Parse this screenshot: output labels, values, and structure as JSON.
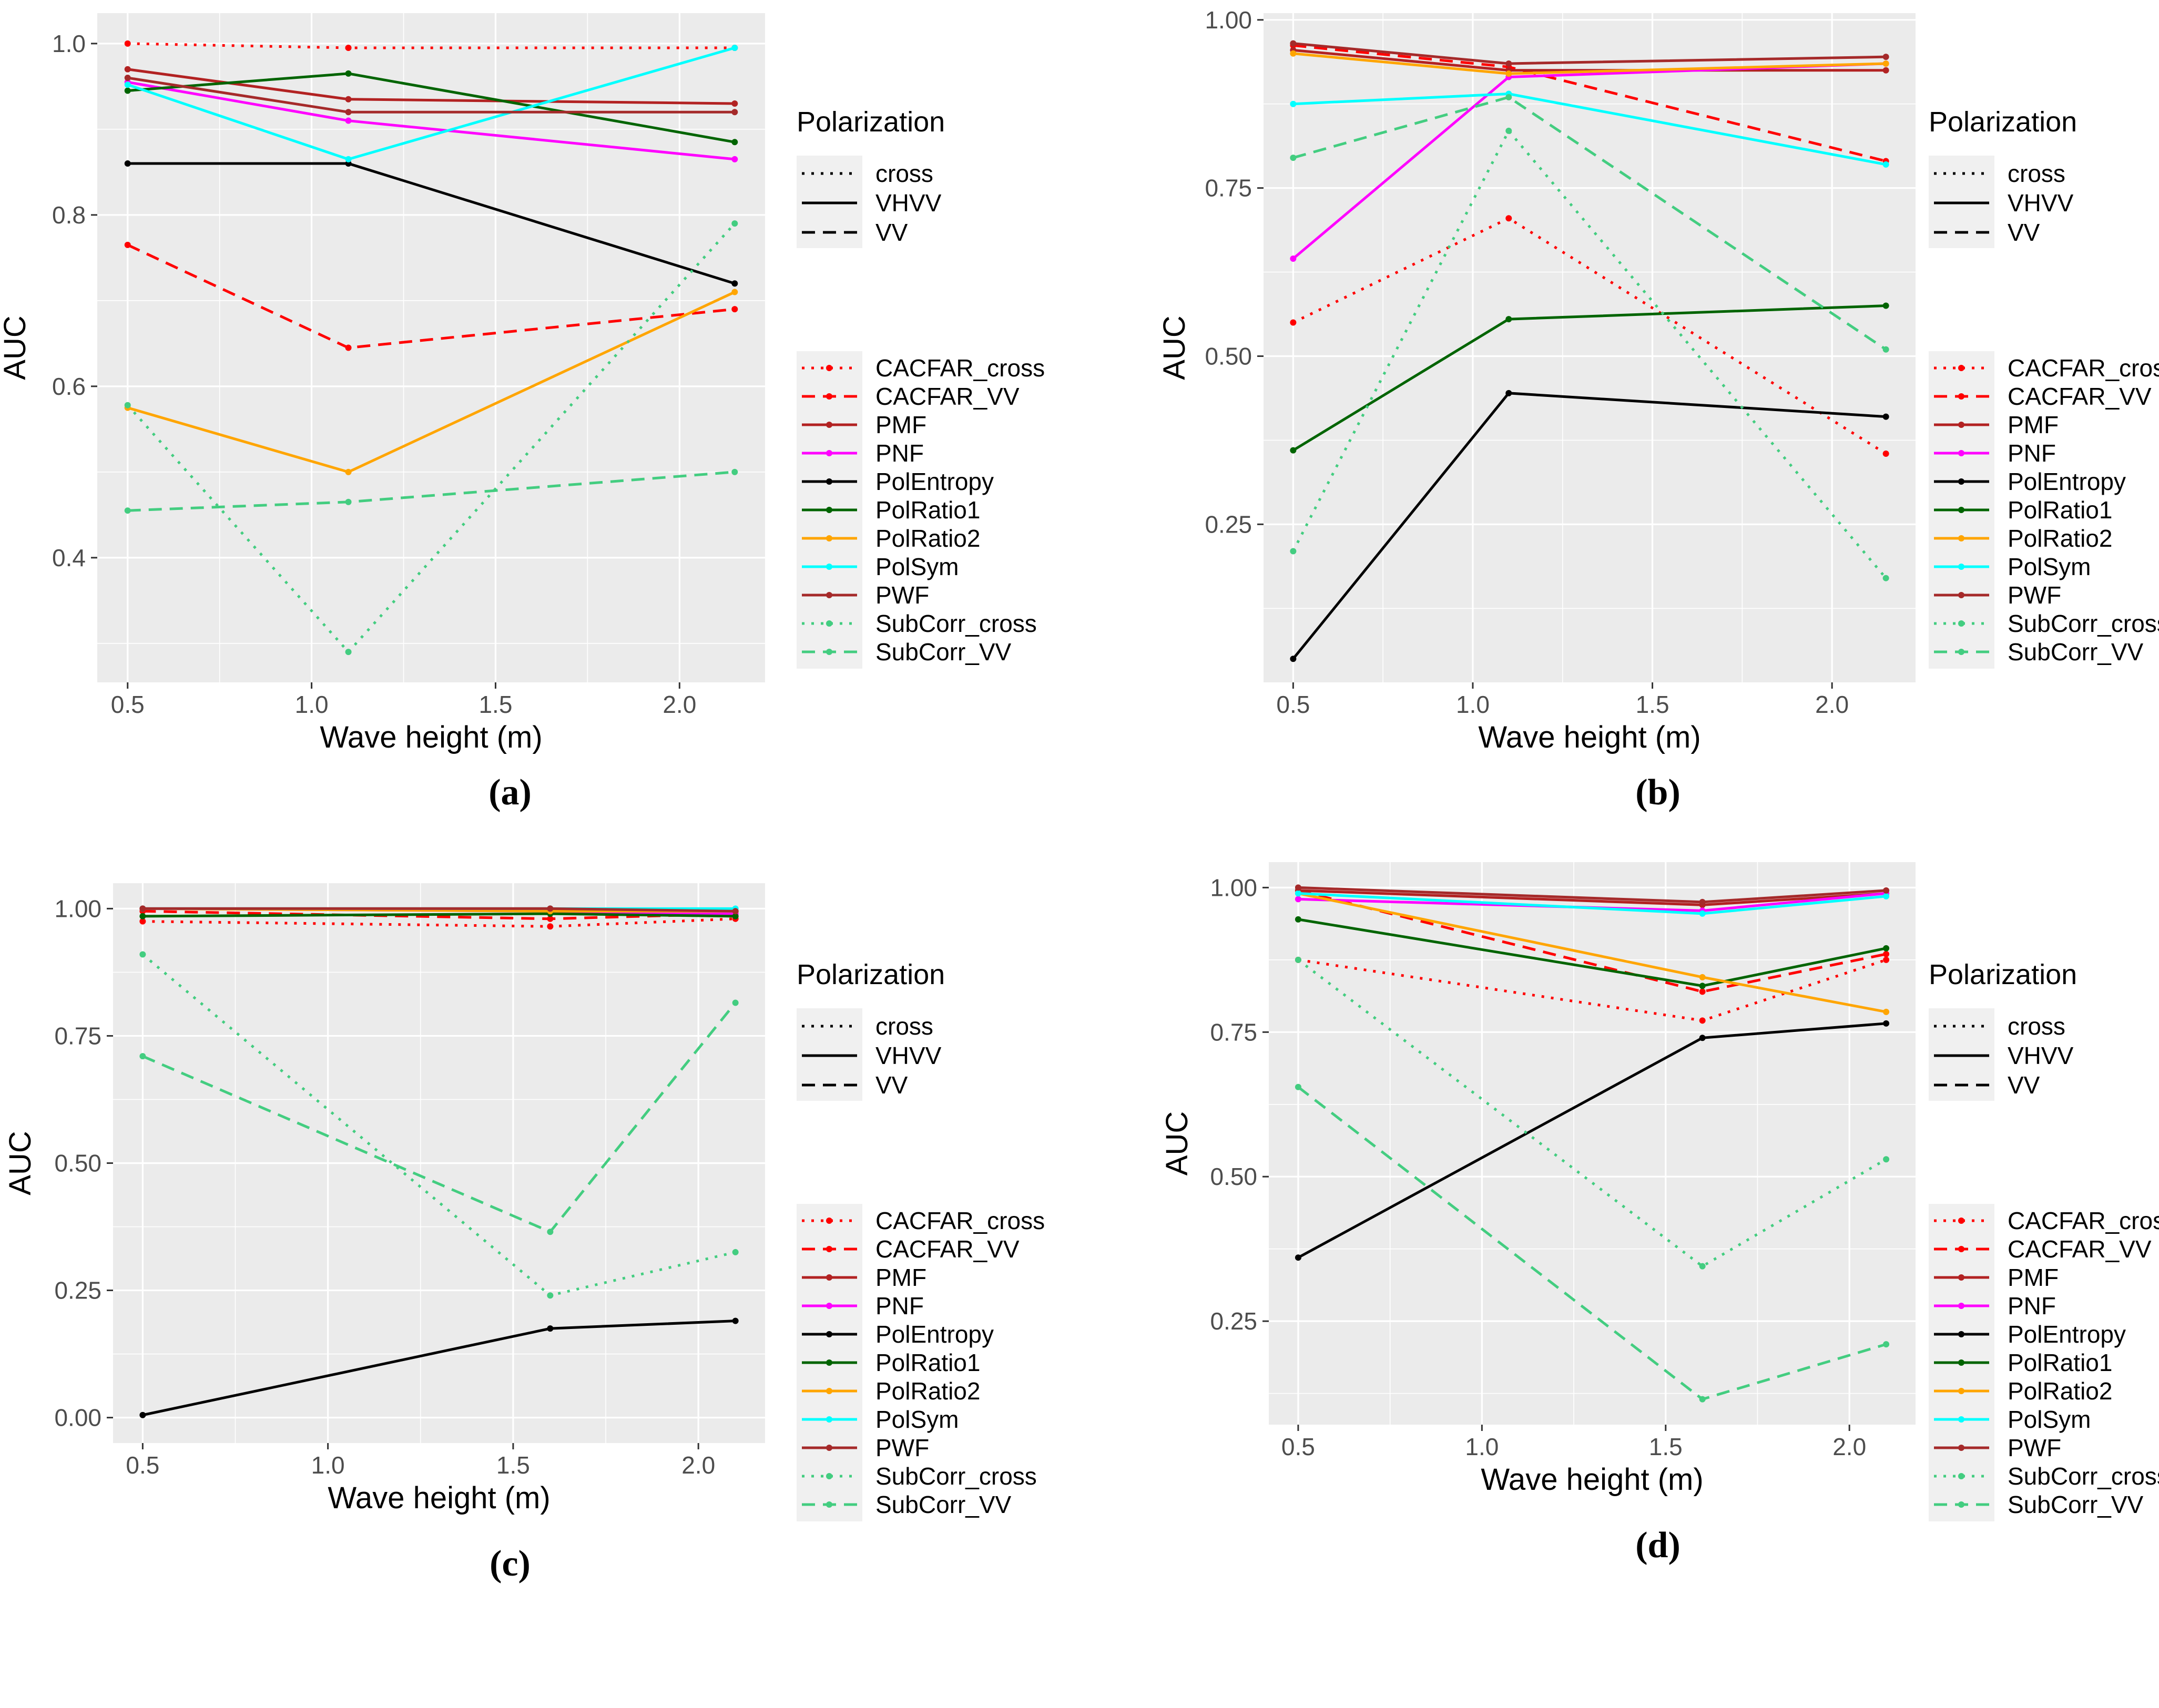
{
  "figure_title": "",
  "axis": {
    "xlabel": "Wave height (m)",
    "ylabel": "AUC"
  },
  "legend": {
    "polarization": {
      "title": "Polarization",
      "items": [
        {
          "label": "cross",
          "dash": "dotted"
        },
        {
          "label": "VHVV",
          "dash": "solid"
        },
        {
          "label": "VV",
          "dash": "dashed"
        }
      ]
    },
    "series_styles": [
      {
        "name": "CACFAR_cross",
        "color": "#FF0000",
        "dash": "dotted"
      },
      {
        "name": "CACFAR_VV",
        "color": "#FF0000",
        "dash": "dashed"
      },
      {
        "name": "PMF",
        "color": "#B22222",
        "dash": "solid"
      },
      {
        "name": "PNF",
        "color": "#FF00FF",
        "dash": "solid"
      },
      {
        "name": "PolEntropy",
        "color": "#000000",
        "dash": "solid"
      },
      {
        "name": "PolRatio1",
        "color": "#006400",
        "dash": "solid"
      },
      {
        "name": "PolRatio2",
        "color": "#FFA500",
        "dash": "solid"
      },
      {
        "name": "PolSym",
        "color": "#00FFFF",
        "dash": "solid"
      },
      {
        "name": "PWF",
        "color": "#A52A2A",
        "dash": "solid"
      },
      {
        "name": "SubCorr_cross",
        "color": "#43CD80",
        "dash": "dotted"
      },
      {
        "name": "SubCorr_VV",
        "color": "#43CD80",
        "dash": "dashed"
      }
    ],
    "colors": {
      "plot_background": "#EBEBEB",
      "gridline": "#FFFFFF",
      "tick_label": "#4D4D4D",
      "legend_key_bg": "#F0F0F0"
    }
  },
  "chart_data": [
    {
      "id": "a",
      "type": "line",
      "caption": "(a)",
      "xlabel": "Wave height (m)",
      "ylabel": "AUC",
      "x": [
        0.5,
        1.1,
        2.15
      ],
      "x_domain": [
        0.4175,
        2.2325
      ],
      "x_ticks": [
        0.5,
        1.0,
        1.5,
        2.0
      ],
      "x_tick_labels": [
        "0.5",
        "1.0",
        "1.5",
        "2.0"
      ],
      "x_minor": [
        0.75,
        1.25,
        1.75
      ],
      "y_domain": [
        0.2545,
        1.0355
      ],
      "y_ticks": [
        0.4,
        0.6,
        0.8,
        1.0
      ],
      "y_tick_labels": [
        "0.4",
        "0.6",
        "0.8",
        "1.0"
      ],
      "y_minor": [
        0.3,
        0.5,
        0.7,
        0.9
      ],
      "series": [
        {
          "name": "CACFAR_cross",
          "values": [
            1.0,
            0.995,
            0.995
          ]
        },
        {
          "name": "CACFAR_VV",
          "values": [
            0.765,
            0.645,
            0.69
          ]
        },
        {
          "name": "PMF",
          "values": [
            0.97,
            0.935,
            0.93
          ]
        },
        {
          "name": "PNF",
          "values": [
            0.955,
            0.91,
            0.865
          ]
        },
        {
          "name": "PolEntropy",
          "values": [
            0.86,
            0.86,
            0.72
          ]
        },
        {
          "name": "PolRatio1",
          "values": [
            0.945,
            0.965,
            0.885
          ]
        },
        {
          "name": "PolRatio2",
          "values": [
            0.575,
            0.5,
            0.71
          ]
        },
        {
          "name": "PolSym",
          "values": [
            0.952,
            0.865,
            0.995
          ]
        },
        {
          "name": "PWF",
          "values": [
            0.96,
            0.92,
            0.92
          ]
        },
        {
          "name": "SubCorr_cross",
          "values": [
            0.578,
            0.29,
            0.79
          ]
        },
        {
          "name": "SubCorr_VV",
          "values": [
            0.455,
            0.465,
            0.5
          ]
        }
      ]
    },
    {
      "id": "b",
      "type": "line",
      "caption": "(b)",
      "xlabel": "Wave height (m)",
      "ylabel": "AUC",
      "x": [
        0.5,
        1.1,
        2.15
      ],
      "x_domain": [
        0.4175,
        2.2325
      ],
      "x_ticks": [
        0.5,
        1.0,
        1.5,
        2.0
      ],
      "x_tick_labels": [
        "0.5",
        "1.0",
        "1.5",
        "2.0"
      ],
      "x_minor": [
        0.75,
        1.25,
        1.75
      ],
      "y_domain": [
        0.015,
        1.01
      ],
      "y_ticks": [
        0.25,
        0.5,
        0.75,
        1.0
      ],
      "y_tick_labels": [
        "0.25",
        "0.50",
        "0.75",
        "1.00"
      ],
      "y_minor": [
        0.125,
        0.375,
        0.625,
        0.875
      ],
      "series": [
        {
          "name": "CACFAR_cross",
          "values": [
            0.55,
            0.705,
            0.355
          ]
        },
        {
          "name": "CACFAR_VV",
          "values": [
            0.962,
            0.93,
            0.79
          ]
        },
        {
          "name": "PMF",
          "values": [
            0.955,
            0.925,
            0.925
          ]
        },
        {
          "name": "PNF",
          "values": [
            0.645,
            0.915,
            0.935
          ]
        },
        {
          "name": "PolEntropy",
          "values": [
            0.05,
            0.445,
            0.41
          ]
        },
        {
          "name": "PolRatio1",
          "values": [
            0.36,
            0.555,
            0.575
          ]
        },
        {
          "name": "PolRatio2",
          "values": [
            0.95,
            0.92,
            0.935
          ]
        },
        {
          "name": "PolSym",
          "values": [
            0.875,
            0.89,
            0.785
          ]
        },
        {
          "name": "PWF",
          "values": [
            0.965,
            0.935,
            0.945
          ]
        },
        {
          "name": "SubCorr_cross",
          "values": [
            0.21,
            0.835,
            0.17
          ]
        },
        {
          "name": "SubCorr_VV",
          "values": [
            0.795,
            0.885,
            0.51
          ]
        }
      ]
    },
    {
      "id": "c",
      "type": "line",
      "caption": "(c)",
      "xlabel": "Wave height (m)",
      "ylabel": "AUC",
      "x": [
        0.5,
        1.6,
        2.1
      ],
      "x_domain": [
        0.42,
        2.18
      ],
      "x_ticks": [
        0.5,
        1.0,
        1.5,
        2.0
      ],
      "x_tick_labels": [
        "0.5",
        "1.0",
        "1.5",
        "2.0"
      ],
      "x_minor": [
        0.75,
        1.25,
        1.75
      ],
      "y_domain": [
        -0.05,
        1.05
      ],
      "y_ticks": [
        0.0,
        0.25,
        0.5,
        0.75,
        1.0
      ],
      "y_tick_labels": [
        "0.00",
        "0.25",
        "0.50",
        "0.75",
        "1.00"
      ],
      "y_minor": [
        0.125,
        0.375,
        0.625,
        0.875
      ],
      "series": [
        {
          "name": "CACFAR_cross",
          "values": [
            0.975,
            0.965,
            0.98
          ]
        },
        {
          "name": "CACFAR_VV",
          "values": [
            0.995,
            0.98,
            0.99
          ]
        },
        {
          "name": "PMF",
          "values": [
            1.0,
            1.0,
            0.995
          ]
        },
        {
          "name": "PNF",
          "values": [
            1.0,
            0.995,
            0.99
          ]
        },
        {
          "name": "PolEntropy",
          "values": [
            0.005,
            0.175,
            0.19
          ]
        },
        {
          "name": "PolRatio1",
          "values": [
            0.985,
            0.99,
            0.985
          ]
        },
        {
          "name": "PolRatio2",
          "values": [
            1.0,
            0.995,
            0.995
          ]
        },
        {
          "name": "PolSym",
          "values": [
            1.0,
            1.0,
            1.0
          ]
        },
        {
          "name": "PWF",
          "values": [
            1.0,
            1.0,
            0.995
          ]
        },
        {
          "name": "SubCorr_cross",
          "values": [
            0.91,
            0.24,
            0.325
          ]
        },
        {
          "name": "SubCorr_VV",
          "values": [
            0.71,
            0.365,
            0.815
          ]
        }
      ]
    },
    {
      "id": "d",
      "type": "line",
      "caption": "(d)",
      "xlabel": "Wave height (m)",
      "ylabel": "AUC",
      "x": [
        0.5,
        1.6,
        2.1
      ],
      "x_domain": [
        0.42,
        2.18
      ],
      "x_ticks": [
        0.5,
        1.0,
        1.5,
        2.0
      ],
      "x_tick_labels": [
        "0.5",
        "1.0",
        "1.5",
        "2.0"
      ],
      "x_minor": [
        0.75,
        1.25,
        1.75
      ],
      "y_domain": [
        0.071,
        1.044
      ],
      "y_ticks": [
        0.25,
        0.5,
        0.75,
        1.0
      ],
      "y_tick_labels": [
        "0.25",
        "0.50",
        "0.75",
        "1.00"
      ],
      "y_minor": [
        0.125,
        0.375,
        0.625,
        0.875
      ],
      "series": [
        {
          "name": "CACFAR_cross",
          "values": [
            0.875,
            0.77,
            0.875
          ]
        },
        {
          "name": "CACFAR_VV",
          "values": [
            0.995,
            0.82,
            0.885
          ]
        },
        {
          "name": "PMF",
          "values": [
            0.995,
            0.97,
            0.99
          ]
        },
        {
          "name": "PNF",
          "values": [
            0.98,
            0.96,
            0.99
          ]
        },
        {
          "name": "PolEntropy",
          "values": [
            0.36,
            0.74,
            0.765
          ]
        },
        {
          "name": "PolRatio1",
          "values": [
            0.945,
            0.83,
            0.895
          ]
        },
        {
          "name": "PolRatio2",
          "values": [
            0.99,
            0.845,
            0.785
          ]
        },
        {
          "name": "PolSym",
          "values": [
            0.99,
            0.955,
            0.985
          ]
        },
        {
          "name": "PWF",
          "values": [
            1.0,
            0.975,
            0.995
          ]
        },
        {
          "name": "SubCorr_cross",
          "values": [
            0.875,
            0.345,
            0.53
          ]
        },
        {
          "name": "SubCorr_VV",
          "values": [
            0.655,
            0.115,
            0.21
          ]
        }
      ]
    }
  ]
}
